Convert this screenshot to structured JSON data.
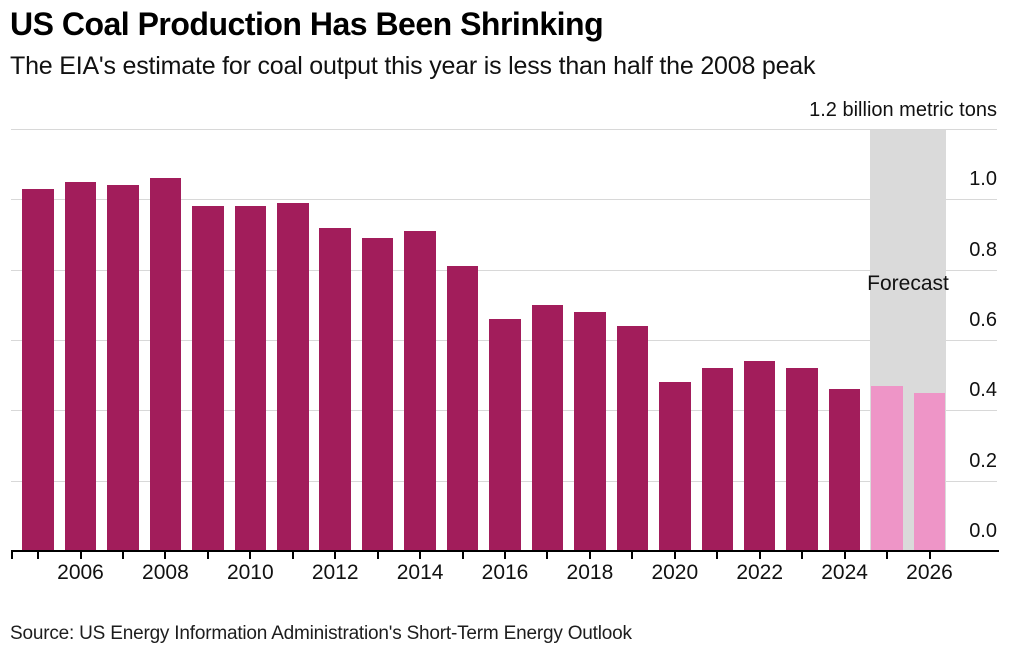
{
  "chart_data": {
    "type": "bar",
    "title": "US Coal Production Has Been Shrinking",
    "subtitle": "The EIA's estimate for coal output this year is less than half the 2008 peak",
    "unit_label": "1.2 billion metric tons",
    "forecast_label": "Forecast",
    "ylabel": "billion metric tons",
    "categories": [
      2005,
      2006,
      2007,
      2008,
      2009,
      2010,
      2011,
      2012,
      2013,
      2014,
      2015,
      2016,
      2017,
      2018,
      2019,
      2020,
      2021,
      2022,
      2023,
      2024,
      2025,
      2026
    ],
    "values": [
      1.03,
      1.05,
      1.04,
      1.06,
      0.98,
      0.98,
      0.99,
      0.92,
      0.89,
      0.91,
      0.81,
      0.66,
      0.7,
      0.68,
      0.64,
      0.48,
      0.52,
      0.54,
      0.52,
      0.46,
      0.47,
      0.45
    ],
    "forecast_from": 2025,
    "x_tick_labels": [
      "2006",
      "2008",
      "2010",
      "2012",
      "2014",
      "2016",
      "2018",
      "2020",
      "2022",
      "2024",
      "2026"
    ],
    "y_tick_labels": [
      "1.0",
      "0.8",
      "0.6",
      "0.4",
      "0.2",
      "0.0"
    ],
    "grid_values": [
      1.2,
      1.0,
      0.8,
      0.6,
      0.4,
      0.2
    ],
    "ylim": [
      0,
      1.2
    ],
    "legend": "none",
    "grid": "on",
    "colors": {
      "bar": "#a21d5b",
      "forecast_bar": "#ee95c7",
      "forecast_band": "#dadada",
      "gridline": "#d8d8d8",
      "axis": "#000000"
    }
  },
  "footer": {
    "source": "Source: US Energy Information Administration's Short-Term Energy Outlook"
  }
}
